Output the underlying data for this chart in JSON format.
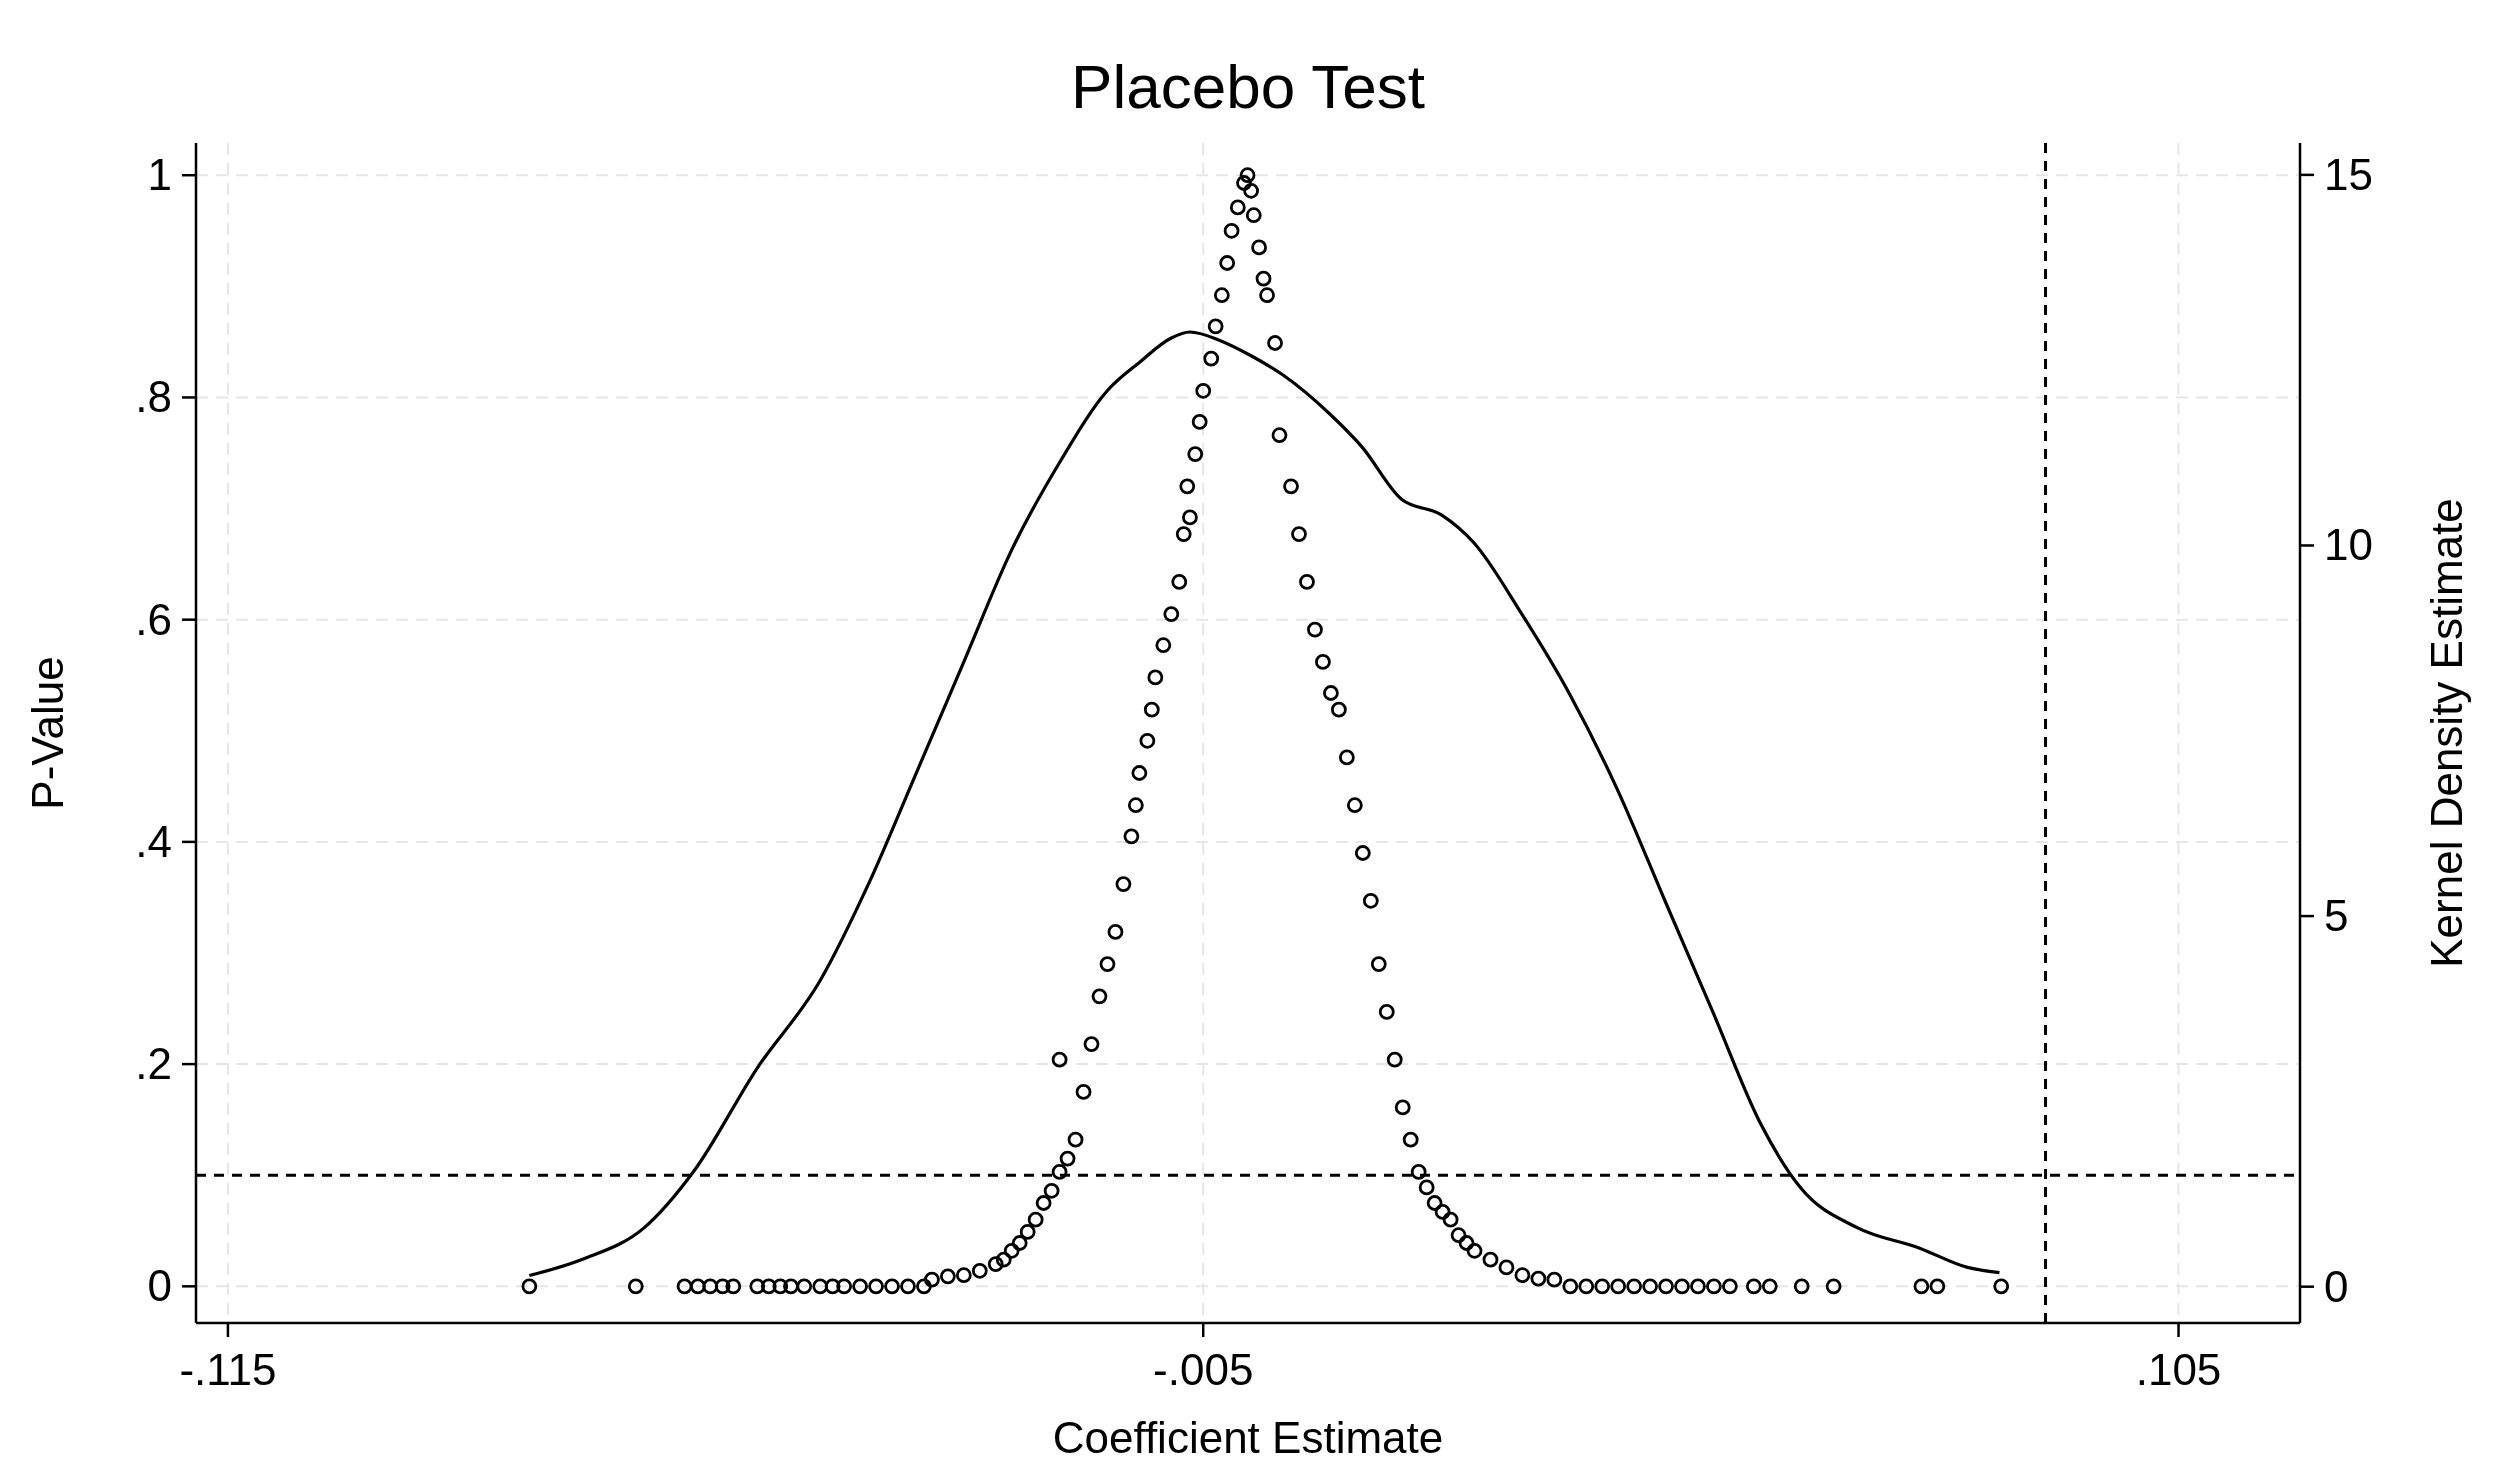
{
  "chart_data": {
    "type": "scatter",
    "title": "Placebo Test",
    "xlabel": "Coefficient Estimate",
    "ylabel": "P-Value",
    "y2label": "Kernel Density Estimate",
    "xlim": [
      -0.1186,
      0.1187
    ],
    "xticks": [
      {
        "value": -0.115,
        "label": "-.115"
      },
      {
        "value": -0.005,
        "label": "-.005"
      },
      {
        "value": 0.105,
        "label": ".105"
      }
    ],
    "ylim": [
      -0.033,
      1.029
    ],
    "yticks": [
      0,
      {
        "value": 0.2,
        "label": ".2"
      },
      {
        "value": 0.4,
        "label": ".4"
      },
      {
        "value": 0.6,
        "label": ".6"
      },
      {
        "value": 0.8,
        "label": ".8"
      },
      1
    ],
    "y2lim": [
      -0.49,
      15.43
    ],
    "y2ticks": [
      0,
      5,
      10,
      15
    ],
    "grid": true,
    "ref_lines": [
      {
        "axis": "y",
        "value": 0.1,
        "line_style": "dashed",
        "color": "#000000"
      },
      {
        "axis": "x",
        "value": 0.09,
        "line_style": "dashed",
        "color": "#000000"
      }
    ],
    "series": [
      {
        "color": "#000000",
        "marker": "circle",
        "x": [
          -0.081,
          -0.069,
          -0.0635,
          -0.062,
          -0.0606,
          -0.0592,
          -0.058,
          -0.0553,
          -0.054,
          -0.0527,
          -0.0515,
          -0.05,
          -0.0482,
          -0.0468,
          -0.0455,
          -0.0437,
          -0.0419,
          -0.0401,
          -0.0383,
          -0.0365,
          -0.0356,
          -0.0338,
          -0.032,
          -0.0302,
          -0.0284,
          -0.0275,
          -0.0266,
          -0.0257,
          -0.0248,
          -0.0239,
          -0.023,
          -0.0221,
          -0.0212,
          -0.0203,
          -0.0194,
          -0.0212,
          -0.0185,
          -0.0176,
          -0.0167,
          -0.0158,
          -0.0149,
          -0.014,
          -0.0131,
          -0.0126,
          -0.0122,
          -0.0113,
          -0.0108,
          -0.0104,
          -0.0095,
          -0.0086,
          -0.0077,
          -0.0072,
          -0.0068,
          -0.0065,
          -0.0059,
          -0.0054,
          -0.005,
          -0.0041,
          -0.0036,
          -0.0029,
          -0.0023,
          -0.0018,
          -0.0011,
          -0.0004,
          0.0,
          0.0004,
          0.0007,
          0.0013,
          0.0018,
          0.0022,
          0.0031,
          0.0036,
          0.0049,
          0.0058,
          0.0067,
          0.0076,
          0.0085,
          0.0094,
          0.0103,
          0.0112,
          0.0121,
          0.013,
          0.0139,
          0.0148,
          0.0157,
          0.0166,
          0.0175,
          0.0184,
          0.0193,
          0.0202,
          0.0211,
          0.022,
          0.0229,
          0.0238,
          0.0247,
          0.0256,
          0.0274,
          0.0292,
          0.031,
          0.0328,
          0.0346,
          0.0364,
          0.0382,
          0.04,
          0.0418,
          0.0436,
          0.0454,
          0.0472,
          0.049,
          0.0508,
          0.0526,
          0.0544,
          0.0571,
          0.0589,
          0.0625,
          0.0661,
          0.076,
          0.0778,
          0.085
        ],
        "values": [
          0,
          0,
          0,
          0,
          0,
          0,
          0,
          0,
          0,
          0,
          0,
          0,
          0,
          0,
          0,
          0,
          0,
          0,
          0,
          0,
          0.006,
          0.009,
          0.01,
          0.014,
          0.02,
          0.024,
          0.032,
          0.039,
          0.049,
          0.06,
          0.075,
          0.086,
          0.103,
          0.115,
          0.132,
          0.204,
          0.175,
          0.218,
          0.261,
          0.29,
          0.319,
          0.362,
          0.405,
          0.433,
          0.462,
          0.491,
          0.519,
          0.548,
          0.577,
          0.605,
          0.634,
          0.677,
          0.72,
          0.692,
          0.749,
          0.778,
          0.806,
          0.835,
          0.864,
          0.892,
          0.921,
          0.95,
          0.971,
          0.993,
          1.0,
          0.986,
          0.964,
          0.935,
          0.907,
          0.892,
          0.849,
          0.766,
          0.72,
          0.677,
          0.634,
          0.591,
          0.562,
          0.534,
          0.519,
          0.476,
          0.433,
          0.39,
          0.347,
          0.29,
          0.247,
          0.204,
          0.161,
          0.132,
          0.103,
          0.089,
          0.075,
          0.067,
          0.06,
          0.046,
          0.039,
          0.032,
          0.024,
          0.017,
          0.01,
          0.007,
          0.006,
          0,
          0,
          0,
          0,
          0,
          0,
          0,
          0,
          0,
          0,
          0,
          0,
          0,
          0,
          0,
          0,
          0,
          0
        ]
      },
      {
        "type": "line",
        "axis": "y2",
        "color": "#000000",
        "line_style": "solid",
        "x": [
          -0.081,
          -0.075,
          -0.068,
          -0.0625,
          -0.0553,
          -0.0482,
          -0.0428,
          -0.0374,
          -0.032,
          -0.0266,
          -0.0212,
          -0.0158,
          -0.0122,
          -0.0086,
          -0.0065,
          -0.0032,
          0.0004,
          0.004,
          0.0094,
          0.0129,
          0.0174,
          0.0219,
          0.0255,
          0.0309,
          0.0363,
          0.0417,
          0.0471,
          0.0525,
          0.0579,
          0.0624,
          0.0687,
          0.0758,
          0.0812,
          0.0848
        ],
        "values": [
          0.15,
          0.37,
          0.8,
          1.55,
          2.95,
          4.13,
          5.42,
          6.92,
          8.43,
          9.94,
          11.12,
          12.09,
          12.47,
          12.8,
          12.88,
          12.77,
          12.56,
          12.3,
          11.76,
          11.33,
          10.62,
          10.41,
          10.04,
          9.08,
          8.0,
          6.71,
          5.2,
          3.7,
          2.19,
          1.33,
          0.8,
          0.52,
          0.26,
          0.19
        ]
      }
    ]
  }
}
